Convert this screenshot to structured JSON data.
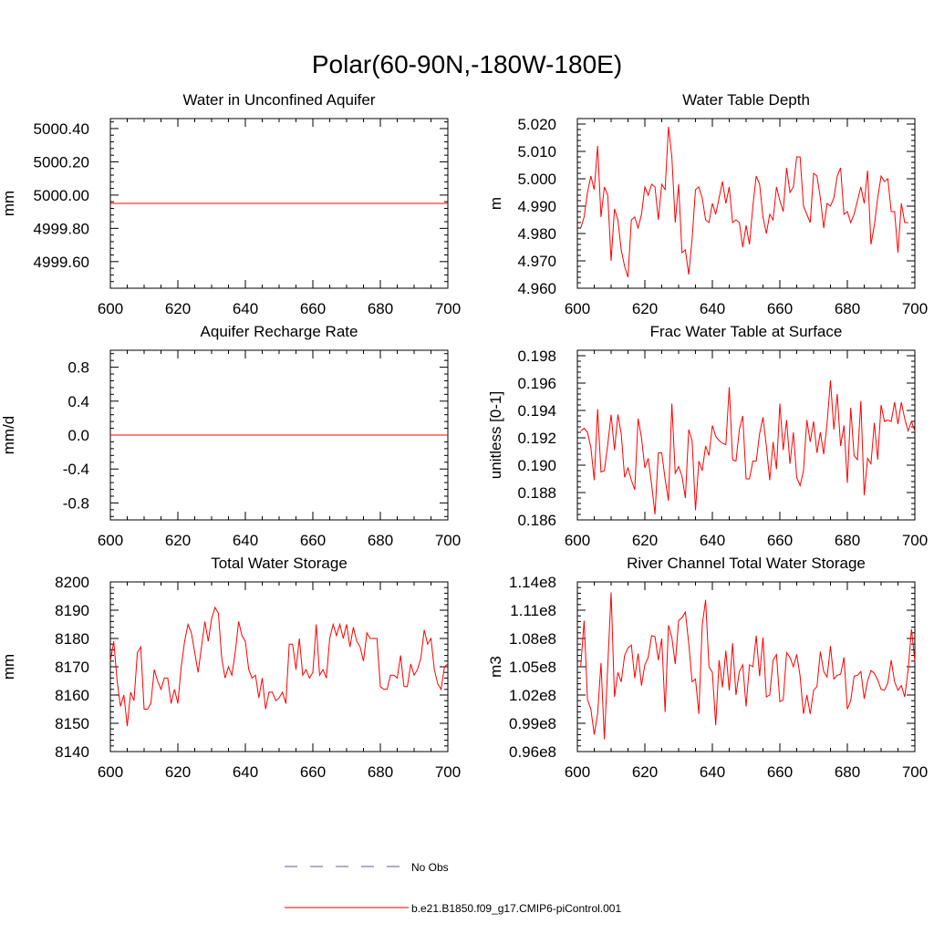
{
  "figure_title": "Polar(60-90N,-180W-180E)",
  "legend": {
    "obs_label": "No Obs",
    "model_label": "b.e21.B1850.f09_g17.CMIP6-piControl.001",
    "obs_color": "#5a5aa8",
    "model_color": "#ff0000"
  },
  "chart_data": [
    {
      "type": "line",
      "title": "Water in Unconfined Aquifer",
      "xlabel": "",
      "ylabel": "mm",
      "xlim": [
        600,
        700
      ],
      "ylim": [
        4999.44,
        5000.46
      ],
      "xticks": [
        600,
        620,
        640,
        660,
        680,
        700
      ],
      "xtick_labels": [
        "600",
        "620",
        "640",
        "660",
        "680",
        "700"
      ],
      "yticks": [
        4999.6,
        4999.8,
        5000.0,
        5000.2,
        5000.4
      ],
      "ytick_labels": [
        "4999.60",
        "4999.80",
        "5000.00",
        "5000.20",
        "5000.40"
      ],
      "series": [
        {
          "name": "b.e21.B1850.f09_g17.CMIP6-piControl.001",
          "color": "#ff0000",
          "x": [
            600,
            700
          ],
          "values": [
            4999.95,
            4999.95
          ]
        }
      ]
    },
    {
      "type": "line",
      "title": "Water Table Depth",
      "xlabel": "",
      "ylabel": "m",
      "xlim": [
        600,
        700
      ],
      "ylim": [
        4.96,
        5.022
      ],
      "xticks": [
        600,
        620,
        640,
        660,
        680,
        700
      ],
      "xtick_labels": [
        "600",
        "620",
        "640",
        "660",
        "680",
        "700"
      ],
      "yticks": [
        4.96,
        4.97,
        4.98,
        4.99,
        5.0,
        5.01,
        5.02
      ],
      "ytick_labels": [
        "4.960",
        "4.970",
        "4.980",
        "4.990",
        "5.000",
        "5.010",
        "5.020"
      ],
      "series": [
        {
          "name": "b.e21.B1850.f09_g17.CMIP6-piControl.001",
          "color": "#ff0000",
          "x0": 601,
          "values": [
            4.982,
            4.986,
            4.995,
            5.001,
            4.996,
            5.012,
            4.986,
            4.997,
            4.994,
            4.97,
            4.989,
            4.985,
            4.974,
            4.968,
            4.964,
            4.985,
            4.986,
            4.982,
            4.987,
            4.997,
            4.994,
            4.998,
            4.997,
            4.985,
            4.998,
            4.996,
            5.019,
            5.008,
            4.984,
            4.998,
            4.973,
            4.974,
            4.965,
            4.978,
            4.996,
            4.997,
            4.993,
            4.985,
            4.984,
            4.991,
            4.987,
            4.993,
            4.999,
            4.991,
            4.997,
            4.984,
            4.985,
            4.984,
            4.975,
            4.983,
            4.976,
            4.99,
            5.001,
            4.998,
            4.986,
            4.98,
            4.987,
            4.985,
            4.997,
            4.992,
            4.988,
            5.004,
            4.995,
            4.997,
            5.008,
            5.008,
            4.99,
            4.987,
            4.984,
            5.002,
            5.001,
            4.993,
            4.982,
            4.991,
            4.99,
            4.993,
            5.001,
            5.004,
            4.987,
            4.988,
            4.984,
            4.987,
            4.992,
            4.997,
            4.991,
            5.003,
            4.976,
            4.983,
            4.993,
            5.001,
            4.999,
            5.0,
            4.988,
            4.988,
            4.973,
            4.991,
            4.984,
            4.984
          ]
        }
      ]
    },
    {
      "type": "line",
      "title": "Aquifer Recharge Rate",
      "xlabel": "",
      "ylabel": "mm/d",
      "xlim": [
        600,
        700
      ],
      "ylim": [
        -1.0,
        1.0
      ],
      "xticks": [
        600,
        620,
        640,
        660,
        680,
        700
      ],
      "xtick_labels": [
        "600",
        "620",
        "640",
        "660",
        "680",
        "700"
      ],
      "yticks": [
        -0.8,
        -0.4,
        0.0,
        0.4,
        0.8
      ],
      "ytick_labels": [
        "-0.8",
        "-0.4",
        "0.0",
        "0.4",
        "0.8"
      ],
      "series": [
        {
          "name": "b.e21.B1850.f09_g17.CMIP6-piControl.001",
          "color": "#ff0000",
          "x": [
            600,
            700
          ],
          "values": [
            0.0,
            0.0
          ]
        }
      ]
    },
    {
      "type": "line",
      "title": "Frac Water Table at Surface",
      "xlabel": "",
      "ylabel": "unitless [0-1]",
      "xlim": [
        600,
        700
      ],
      "ylim": [
        0.186,
        0.1984
      ],
      "xticks": [
        600,
        620,
        640,
        660,
        680,
        700
      ],
      "xtick_labels": [
        "600",
        "620",
        "640",
        "660",
        "680",
        "700"
      ],
      "yticks": [
        0.186,
        0.188,
        0.19,
        0.192,
        0.194,
        0.196,
        0.198
      ],
      "ytick_labels": [
        "0.186",
        "0.188",
        "0.190",
        "0.192",
        "0.194",
        "0.196",
        "0.198"
      ],
      "series": [
        {
          "name": "b.e21.B1850.f09_g17.CMIP6-piControl.001",
          "color": "#ff0000",
          "x0": 601,
          "values": [
            0.1925,
            0.1927,
            0.1924,
            0.1913,
            0.1889,
            0.1941,
            0.1895,
            0.1896,
            0.1915,
            0.1937,
            0.1911,
            0.1937,
            0.1923,
            0.1891,
            0.1898,
            0.1889,
            0.1882,
            0.1934,
            0.192,
            0.1898,
            0.1905,
            0.1886,
            0.1864,
            0.1909,
            0.1909,
            0.189,
            0.1874,
            0.1945,
            0.1894,
            0.1899,
            0.1892,
            0.1876,
            0.1926,
            0.1918,
            0.1867,
            0.1903,
            0.1896,
            0.1914,
            0.1907,
            0.1929,
            0.1921,
            0.1918,
            0.1916,
            0.1915,
            0.1957,
            0.1904,
            0.1903,
            0.1926,
            0.1936,
            0.189,
            0.189,
            0.1903,
            0.1903,
            0.1923,
            0.1935,
            0.1914,
            0.1889,
            0.1917,
            0.1897,
            0.1945,
            0.1911,
            0.1933,
            0.1901,
            0.1924,
            0.1891,
            0.1885,
            0.1896,
            0.1933,
            0.1917,
            0.1932,
            0.1909,
            0.1924,
            0.1908,
            0.1931,
            0.1962,
            0.1926,
            0.1952,
            0.1914,
            0.1929,
            0.1887,
            0.1942,
            0.1907,
            0.1904,
            0.1947,
            0.1878,
            0.1905,
            0.1901,
            0.1931,
            0.1904,
            0.1944,
            0.1932,
            0.1933,
            0.1932,
            0.1946,
            0.193,
            0.1946,
            0.1934,
            0.1925,
            0.1932,
            0.1925
          ]
        }
      ]
    },
    {
      "type": "line",
      "title": "Total Water Storage",
      "xlabel": "",
      "ylabel": "mm",
      "xlim": [
        600,
        700
      ],
      "ylim": [
        8140,
        8200
      ],
      "xticks": [
        600,
        620,
        640,
        660,
        680,
        700
      ],
      "xtick_labels": [
        "600",
        "620",
        "640",
        "660",
        "680",
        "700"
      ],
      "yticks": [
        8140,
        8150,
        8160,
        8170,
        8180,
        8190,
        8200
      ],
      "ytick_labels": [
        "8140",
        "8150",
        "8160",
        "8170",
        "8180",
        "8190",
        "8200"
      ],
      "series": [
        {
          "name": "b.e21.B1850.f09_g17.CMIP6-piControl.001",
          "color": "#ff0000",
          "x0": 600,
          "values": [
            8172,
            8179,
            8165,
            8156,
            8160,
            8149,
            8161,
            8158,
            8175,
            8177,
            8155,
            8155,
            8157,
            8169,
            8165,
            8162,
            8166,
            8166,
            8157,
            8162,
            8157,
            8170,
            8179,
            8185,
            8182,
            8175,
            8168,
            8177,
            8186,
            8179,
            8187,
            8191,
            8189,
            8173,
            8166,
            8170,
            8167,
            8175,
            8186,
            8181,
            8179,
            8169,
            8166,
            8167,
            8159,
            8166,
            8155,
            8161,
            8161,
            8158,
            8159,
            8161,
            8157,
            8178,
            8178,
            8169,
            8180,
            8167,
            8169,
            8166,
            8168,
            8185,
            8167,
            8169,
            8166,
            8180,
            8185,
            8181,
            8185,
            8180,
            8185,
            8177,
            8184,
            8179,
            8177,
            8172,
            8182,
            8180,
            8180,
            8180,
            8163,
            8162,
            8162,
            8167,
            8167,
            8166,
            8174,
            8163,
            8163,
            8171,
            8167,
            8169,
            8173,
            8183,
            8178,
            8180,
            8169,
            8164,
            8162,
            8170,
            8171
          ]
        }
      ]
    },
    {
      "type": "line",
      "title": "River Channel Total Water Storage",
      "xlabel": "",
      "ylabel": "m3",
      "xlim": [
        600,
        700
      ],
      "ylim": [
        96000000.0,
        114000000.0
      ],
      "xticks": [
        600,
        620,
        640,
        660,
        680,
        700
      ],
      "xtick_labels": [
        "600",
        "620",
        "640",
        "660",
        "680",
        "700"
      ],
      "yticks": [
        96000000.0,
        99000000.0,
        102000000.0,
        105000000.0,
        108000000.0,
        111000000.0,
        114000000.0
      ],
      "ytick_labels": [
        "0.96e8",
        "0.99e8",
        "1.02e8",
        "1.05e8",
        "1.08e8",
        "1.11e8",
        "1.14e8"
      ],
      "series": [
        {
          "name": "b.e21.B1850.f09_g17.CMIP6-piControl.001",
          "color": "#ff0000",
          "x0": 601,
          "values": [
            105000000.0,
            109900000.0,
            101500000.0,
            100500000.0,
            97800000.0,
            100000000.0,
            105400000.0,
            97300000.0,
            105000000.0,
            112900000.0,
            101800000.0,
            104400000.0,
            103400000.0,
            106200000.0,
            107000000.0,
            107300000.0,
            103800000.0,
            106400000.0,
            103000000.0,
            105200000.0,
            106000000.0,
            108300000.0,
            108200000.0,
            105700000.0,
            108000000.0,
            100200000.0,
            109400000.0,
            108100000.0,
            105300000.0,
            109900000.0,
            110200000.0,
            110800000.0,
            107500000.0,
            103400000.0,
            103700000.0,
            100000000.0,
            109400000.0,
            112100000.0,
            105000000.0,
            104400000.0,
            98800000.0,
            105700000.0,
            102800000.0,
            106700000.0,
            102500000.0,
            107500000.0,
            102000000.0,
            104500000.0,
            105200000.0,
            100800000.0,
            105200000.0,
            105000000.0,
            108300000.0,
            104000000.0,
            108100000.0,
            101800000.0,
            102000000.0,
            105700000.0,
            106300000.0,
            101300000.0,
            101500000.0,
            106500000.0,
            106000000.0,
            105000000.0,
            106300000.0,
            104000000.0,
            100000000.0,
            102000000.0,
            100000000.0,
            102500000.0,
            102900000.0,
            106600000.0,
            104500000.0,
            103900000.0,
            107200000.0,
            103700000.0,
            104100000.0,
            104200000.0,
            106000000.0,
            100500000.0,
            101400000.0,
            104000000.0,
            104100000.0,
            104500000.0,
            101600000.0,
            103500000.0,
            104600000.0,
            104300000.0,
            103600000.0,
            102600000.0,
            102500000.0,
            103300000.0,
            105700000.0,
            103400000.0,
            102500000.0,
            103000000.0,
            101800000.0,
            104600000.0,
            109000000.0,
            105600000.0
          ]
        }
      ]
    }
  ]
}
